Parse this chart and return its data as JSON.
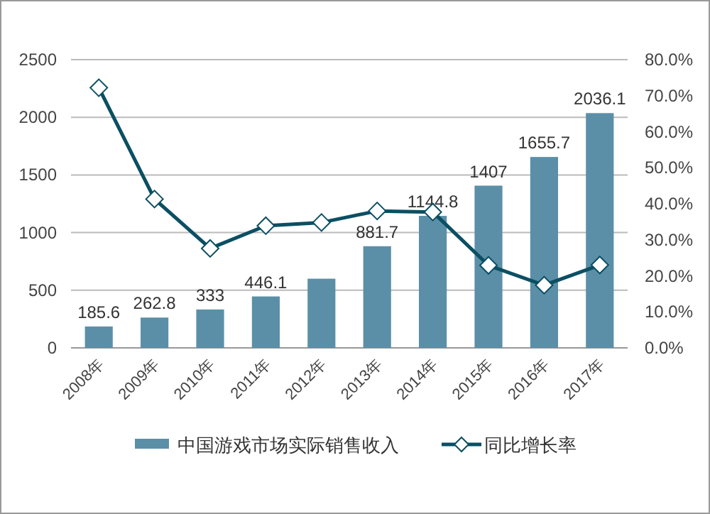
{
  "chart_data": {
    "type": "bar",
    "categories": [
      "2008年",
      "2009年",
      "2010年",
      "2011年",
      "2012年",
      "2013年",
      "2014年",
      "2015年",
      "2016年",
      "2017年"
    ],
    "series": [
      {
        "name": "中国游戏市场实际销售收入",
        "color": "#5b8fa8",
        "values": [
          185.6,
          262.8,
          333,
          446.1,
          600,
          881.7,
          1144.8,
          1407,
          1655.7,
          2036.1
        ],
        "value_labels": [
          "185.6",
          "262.8",
          "333",
          "446.1",
          null,
          "881.7",
          "1144.8",
          "1407",
          "1655.7",
          "2036.1"
        ]
      },
      {
        "name": "同比增长率",
        "type": "line",
        "axis": "y2",
        "color": "#0b4f63",
        "marker": "diamond",
        "values": [
          72.2,
          41.3,
          27.6,
          33.9,
          34.8,
          38.0,
          37.7,
          22.9,
          17.4,
          23.0
        ]
      }
    ],
    "ylim": [
      0,
      2500
    ],
    "yticks": [
      0,
      500,
      1000,
      1500,
      2000,
      2500
    ],
    "y2lim": [
      0,
      80
    ],
    "y2ticks": [
      {
        "value": 0,
        "label": "0.0%"
      },
      {
        "value": 10,
        "label": "10.0%"
      },
      {
        "value": 20,
        "label": "20.0%"
      },
      {
        "value": 30,
        "label": "30.0%"
      },
      {
        "value": 40,
        "label": "40.0%"
      },
      {
        "value": 50,
        "label": "50.0%"
      },
      {
        "value": 60,
        "label": "60.0%"
      },
      {
        "value": 70,
        "label": "70.0%"
      },
      {
        "value": 80,
        "label": "80.0%"
      }
    ],
    "grid": "y",
    "legend": "bottom"
  }
}
